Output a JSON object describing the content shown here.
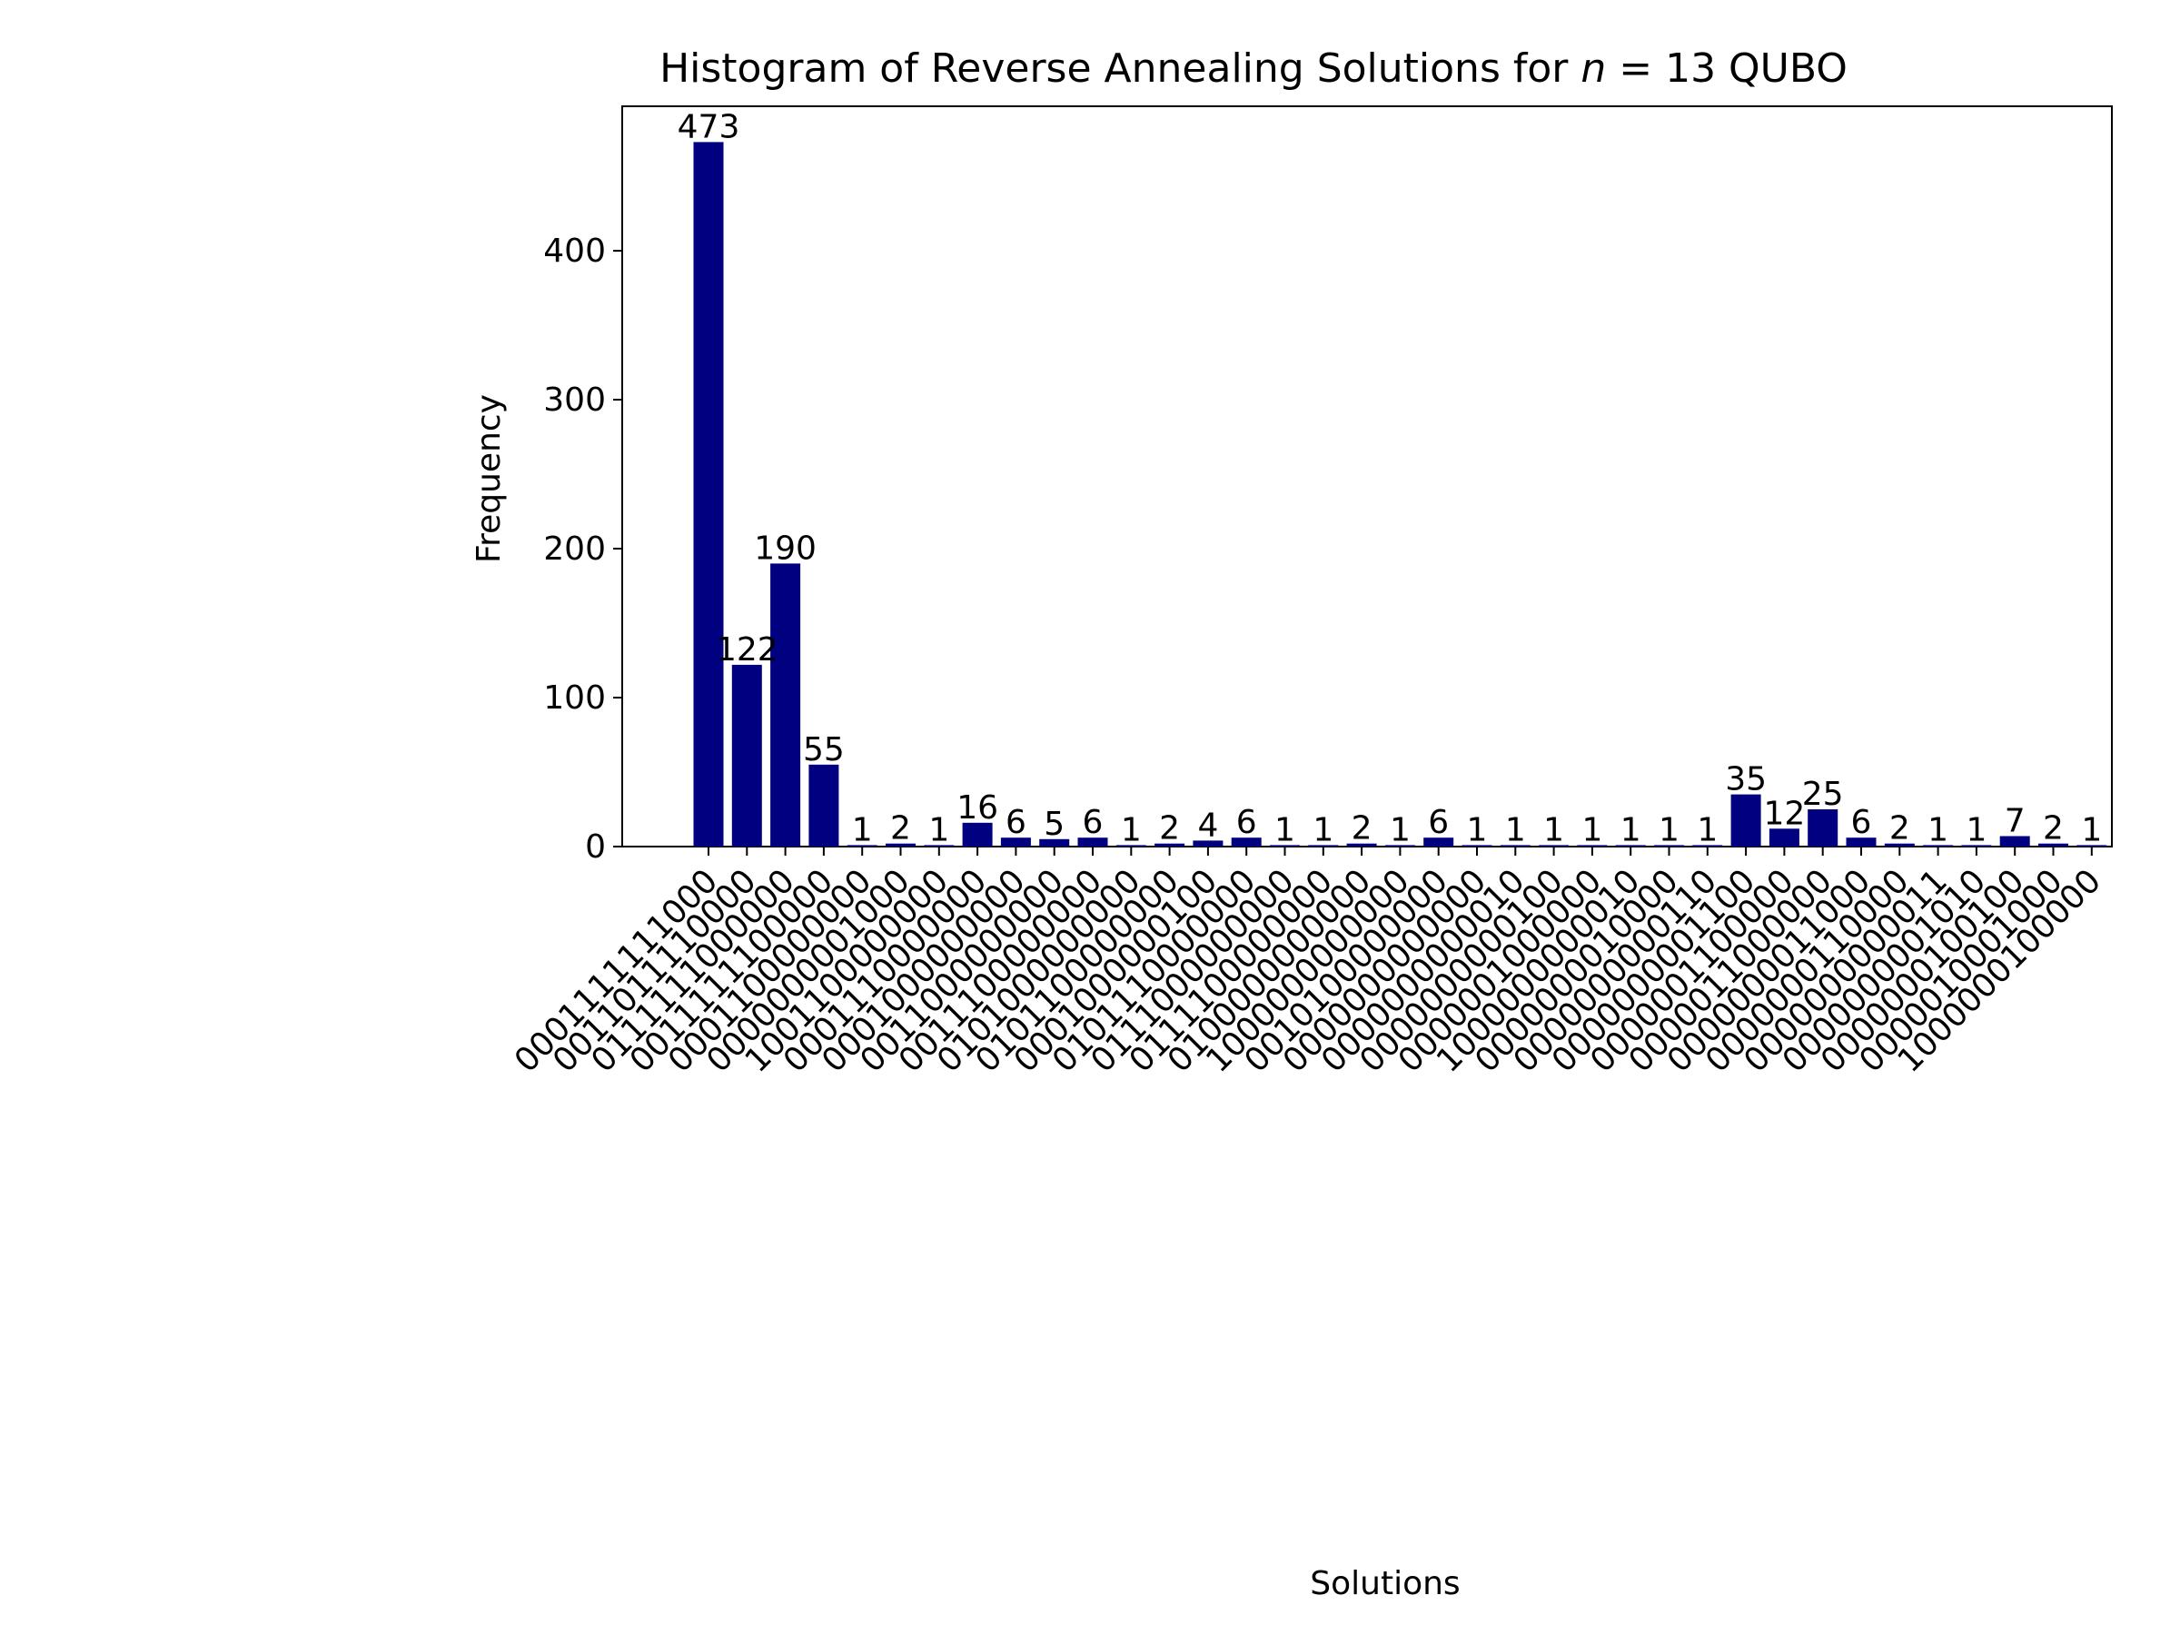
{
  "chart_data": {
    "type": "bar",
    "title": "Histogram of Reverse Annealing Solutions for n = 13 QUBO",
    "title_parts": {
      "prefix": "Histogram of Reverse Annealing Solutions for ",
      "math_var": "n",
      "math_rest": " = 13 QUBO"
    },
    "xlabel": "Solutions",
    "ylabel": "Frequency",
    "ylim": [
      0,
      497
    ],
    "yticks": [
      0,
      100,
      200,
      300,
      400
    ],
    "grid": false,
    "bar_color": "#000080",
    "categories": [
      "0001111111000",
      "0011011110000",
      "0111111000000",
      "0011111100000",
      "0001100000000",
      "0000000001000",
      "1001100000000",
      "0001110000000",
      "0001000000000",
      "0011000000000",
      "0011100000000",
      "0101000000000",
      "0101100000000",
      "0001000000100",
      "0101110000000",
      "0111000000000",
      "0111100000000",
      "0100000000000",
      "1000000000000",
      "0010100000000",
      "0000000000000",
      "0000000000010",
      "0000000000100",
      "0000001000000",
      "1000000000010",
      "0000000010000",
      "0000000000110",
      "0000000001100",
      "0000001100000",
      "0000011000000",
      "0000000011000",
      "0000000110000",
      "0000000000011",
      "0000000001010",
      "0000000100100",
      "0000010001000",
      "1000000100000"
    ],
    "values": [
      473,
      122,
      190,
      55,
      1,
      2,
      1,
      16,
      6,
      5,
      6,
      1,
      2,
      4,
      6,
      1,
      1,
      2,
      1,
      6,
      1,
      1,
      1,
      1,
      1,
      1,
      1,
      35,
      12,
      25,
      6,
      2,
      1,
      1,
      7,
      2,
      1
    ]
  }
}
